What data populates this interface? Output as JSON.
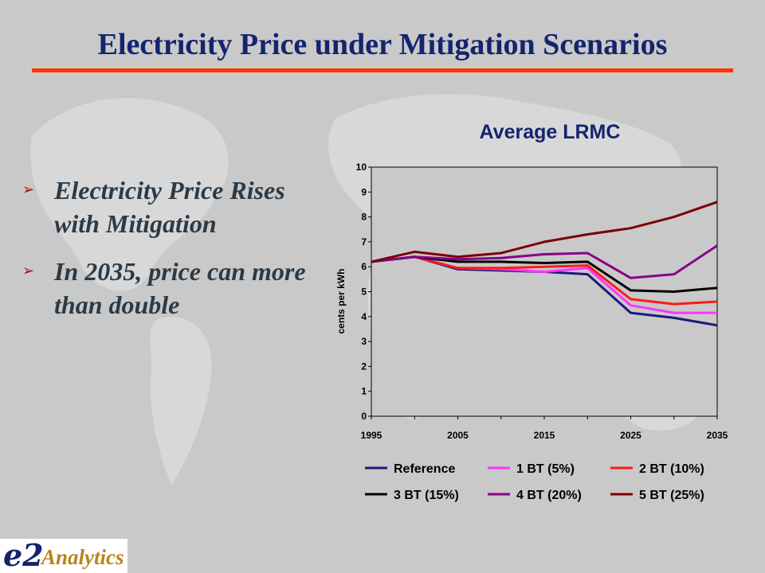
{
  "slide": {
    "title": "Electricity Price under Mitigation Scenarios",
    "bullets": [
      "Electricity Price Rises with Mitigation",
      "In 2035, price can more than double"
    ],
    "bullet_icon": "arrow-bullet-icon",
    "logo": {
      "mark": "e2",
      "word": "Analytics"
    }
  },
  "colors": {
    "title": "#14246e",
    "rule": "#ff3300",
    "gridline": "#f0f060",
    "plot_background": "#c9c9c9"
  },
  "chart_data": {
    "type": "line",
    "title": "Average LRMC",
    "ylabel": "cents per kWh",
    "xlabel": "",
    "ylim": [
      0,
      10
    ],
    "yticks": [
      0,
      1,
      2,
      3,
      4,
      5,
      6,
      7,
      8,
      9,
      10
    ],
    "xlim": [
      1995,
      2035
    ],
    "xtick_labels": [
      "1995",
      "2005",
      "2015",
      "2025",
      "2035"
    ],
    "x": [
      1995,
      2000,
      2005,
      2010,
      2015,
      2020,
      2025,
      2030,
      2035
    ],
    "grid": "horizontal",
    "legend_position": "bottom",
    "series": [
      {
        "name": "Reference",
        "color": "#1a1a7a",
        "values": [
          6.2,
          6.4,
          5.9,
          5.85,
          5.8,
          5.7,
          4.15,
          3.95,
          3.65
        ]
      },
      {
        "name": "1 BT (5%)",
        "color": "#ff33ff",
        "values": [
          6.2,
          6.4,
          5.95,
          5.9,
          5.8,
          5.95,
          4.45,
          4.15,
          4.15
        ]
      },
      {
        "name": "2 BT (10%)",
        "color": "#ff1a1a",
        "values": [
          6.2,
          6.4,
          5.95,
          5.95,
          6.0,
          6.05,
          4.7,
          4.5,
          4.6
        ]
      },
      {
        "name": "3 BT (15%)",
        "color": "#000000",
        "values": [
          6.2,
          6.4,
          6.2,
          6.2,
          6.15,
          6.2,
          5.05,
          5.0,
          5.15
        ]
      },
      {
        "name": "4 BT (20%)",
        "color": "#880088",
        "values": [
          6.2,
          6.4,
          6.3,
          6.35,
          6.5,
          6.55,
          5.55,
          5.7,
          6.85
        ]
      },
      {
        "name": "5 BT (25%)",
        "color": "#7a0000",
        "values": [
          6.2,
          6.6,
          6.4,
          6.55,
          7.0,
          7.3,
          7.55,
          8.0,
          8.6
        ]
      }
    ]
  }
}
